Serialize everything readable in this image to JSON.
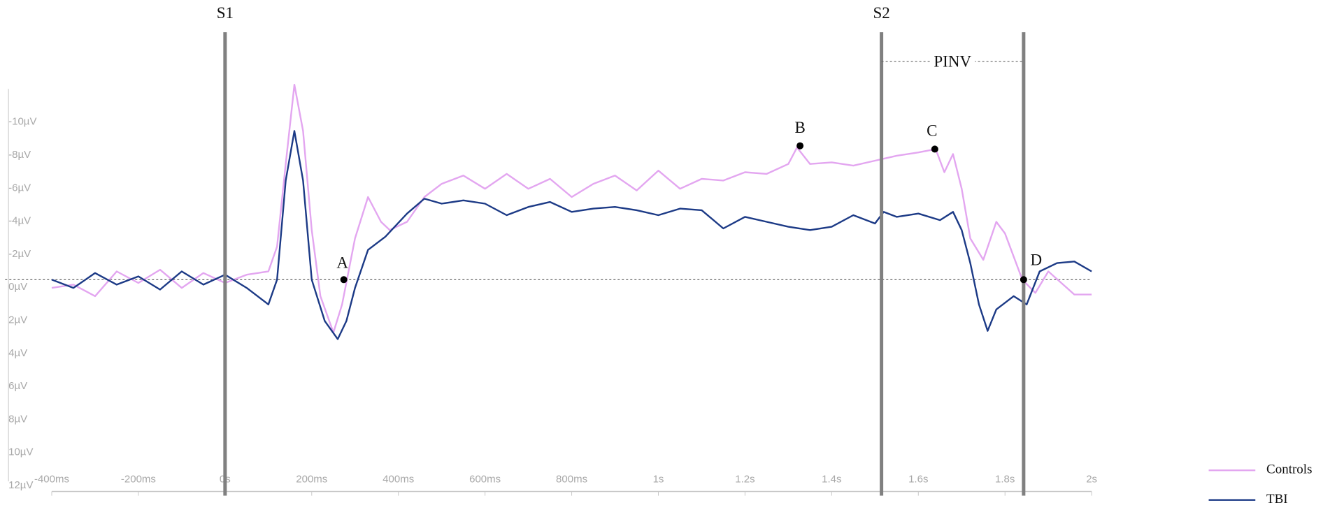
{
  "chart_data": {
    "type": "line",
    "xlim": [
      -0.4,
      2
    ],
    "xticks": [
      {
        "value": -0.4,
        "label": "-400ms"
      },
      {
        "value": -0.2,
        "label": "-200ms"
      },
      {
        "value": 0,
        "label": "0s"
      },
      {
        "value": 0.2,
        "label": "200ms"
      },
      {
        "value": 0.4,
        "label": "400ms"
      },
      {
        "value": 0.6,
        "label": "600ms"
      },
      {
        "value": 0.8,
        "label": "800ms"
      },
      {
        "value": 1,
        "label": "1s"
      },
      {
        "value": 1.2,
        "label": "1.2s"
      },
      {
        "value": 1.4,
        "label": "1.4s"
      },
      {
        "value": 1.6,
        "label": "1.6s"
      },
      {
        "value": 1.8,
        "label": "1.8s"
      },
      {
        "value": 2,
        "label": "2s"
      }
    ],
    "ylim": [
      -12,
      13
    ],
    "y_inverted": true,
    "yticks": [
      {
        "value": -10,
        "label": "-10µV"
      },
      {
        "value": -8,
        "label": "-8µV"
      },
      {
        "value": -6,
        "label": "-6µV"
      },
      {
        "value": -4,
        "label": "-4µV"
      },
      {
        "value": -2,
        "label": "-2µV"
      },
      {
        "value": 0,
        "label": "0µV"
      },
      {
        "value": 2,
        "label": "2µV"
      },
      {
        "value": 4,
        "label": "4µV"
      },
      {
        "value": 6,
        "label": "6µV"
      },
      {
        "value": 8,
        "label": "8µV"
      },
      {
        "value": 10,
        "label": "10µV"
      },
      {
        "value": 12,
        "label": "12µV"
      }
    ],
    "zero_line": true,
    "series": [
      {
        "name": "Controls",
        "color": "#e3a6f0",
        "x": [
          -0.4,
          -0.35,
          -0.3,
          -0.25,
          -0.2,
          -0.15,
          -0.1,
          -0.05,
          0,
          0.05,
          0.1,
          0.12,
          0.14,
          0.16,
          0.18,
          0.2,
          0.22,
          0.25,
          0.27,
          0.3,
          0.33,
          0.36,
          0.38,
          0.42,
          0.46,
          0.5,
          0.55,
          0.6,
          0.65,
          0.7,
          0.75,
          0.8,
          0.85,
          0.9,
          0.95,
          1.0,
          1.05,
          1.1,
          1.15,
          1.2,
          1.25,
          1.3,
          1.32,
          1.35,
          1.4,
          1.45,
          1.5,
          1.55,
          1.6,
          1.64,
          1.66,
          1.68,
          1.7,
          1.72,
          1.75,
          1.78,
          1.8,
          1.84,
          1.87,
          1.9,
          1.93,
          1.96,
          2.0
        ],
        "values": [
          0.5,
          0.3,
          1.0,
          -0.5,
          0.2,
          -0.6,
          0.5,
          -0.4,
          0.2,
          -0.3,
          -0.5,
          -2,
          -7,
          -11.8,
          -9,
          -3,
          1,
          3.2,
          1.5,
          -2.5,
          -5,
          -3.5,
          -3,
          -3.5,
          -5,
          -5.8,
          -6.3,
          -5.5,
          -6.4,
          -5.5,
          -6.1,
          -5,
          -5.8,
          -6.3,
          -5.4,
          -6.6,
          -5.5,
          -6.1,
          -6,
          -6.5,
          -6.4,
          -7,
          -8,
          -7,
          -7.1,
          -6.9,
          -7.2,
          -7.5,
          -7.7,
          -7.9,
          -6.5,
          -7.6,
          -5.5,
          -2.5,
          -1.2,
          -3.5,
          -2.8,
          0,
          0.8,
          -0.5,
          0.2,
          0.9,
          0.9
        ]
      },
      {
        "name": "TBI",
        "color": "#1c3a86",
        "x": [
          -0.4,
          -0.35,
          -0.3,
          -0.25,
          -0.2,
          -0.15,
          -0.1,
          -0.05,
          0,
          0.05,
          0.1,
          0.12,
          0.14,
          0.16,
          0.18,
          0.2,
          0.23,
          0.26,
          0.28,
          0.3,
          0.33,
          0.37,
          0.42,
          0.46,
          0.5,
          0.55,
          0.6,
          0.65,
          0.7,
          0.75,
          0.8,
          0.85,
          0.9,
          0.95,
          1.0,
          1.05,
          1.1,
          1.15,
          1.2,
          1.25,
          1.3,
          1.35,
          1.4,
          1.45,
          1.5,
          1.52,
          1.55,
          1.6,
          1.65,
          1.68,
          1.7,
          1.72,
          1.74,
          1.76,
          1.78,
          1.82,
          1.85,
          1.88,
          1.92,
          1.96,
          2.0
        ],
        "values": [
          0,
          0.5,
          -0.4,
          0.3,
          -0.2,
          0.6,
          -0.5,
          0.3,
          -0.3,
          0.5,
          1.5,
          0,
          -6,
          -9,
          -6,
          0,
          2.5,
          3.6,
          2.5,
          0.5,
          -1.8,
          -2.6,
          -4,
          -4.9,
          -4.6,
          -4.8,
          -4.6,
          -3.9,
          -4.4,
          -4.7,
          -4.1,
          -4.3,
          -4.4,
          -4.2,
          -3.9,
          -4.3,
          -4.2,
          -3.1,
          -3.8,
          -3.5,
          -3.2,
          -3,
          -3.2,
          -3.9,
          -3.4,
          -4.1,
          -3.8,
          -4,
          -3.6,
          -4.1,
          -3,
          -1,
          1.5,
          3.1,
          1.8,
          1,
          1.5,
          -0.5,
          -1.0,
          -1.1,
          -0.5
        ]
      }
    ],
    "vlines": [
      {
        "x": 0,
        "label": "S1"
      },
      {
        "x": 1.515,
        "label": "S2"
      },
      {
        "x": 1.843
      }
    ],
    "span": {
      "label": "PINV",
      "x": [
        1.515,
        1.843
      ],
      "y": -13.2
    },
    "annotations": [
      {
        "label": "A",
        "x": 0.274,
        "y": 0
      },
      {
        "label": "B",
        "x": 1.327,
        "y": -8.1
      },
      {
        "label": "C",
        "x": 1.638,
        "y": -7.9
      },
      {
        "label": "D",
        "x": 1.843,
        "y": 0
      }
    ]
  }
}
